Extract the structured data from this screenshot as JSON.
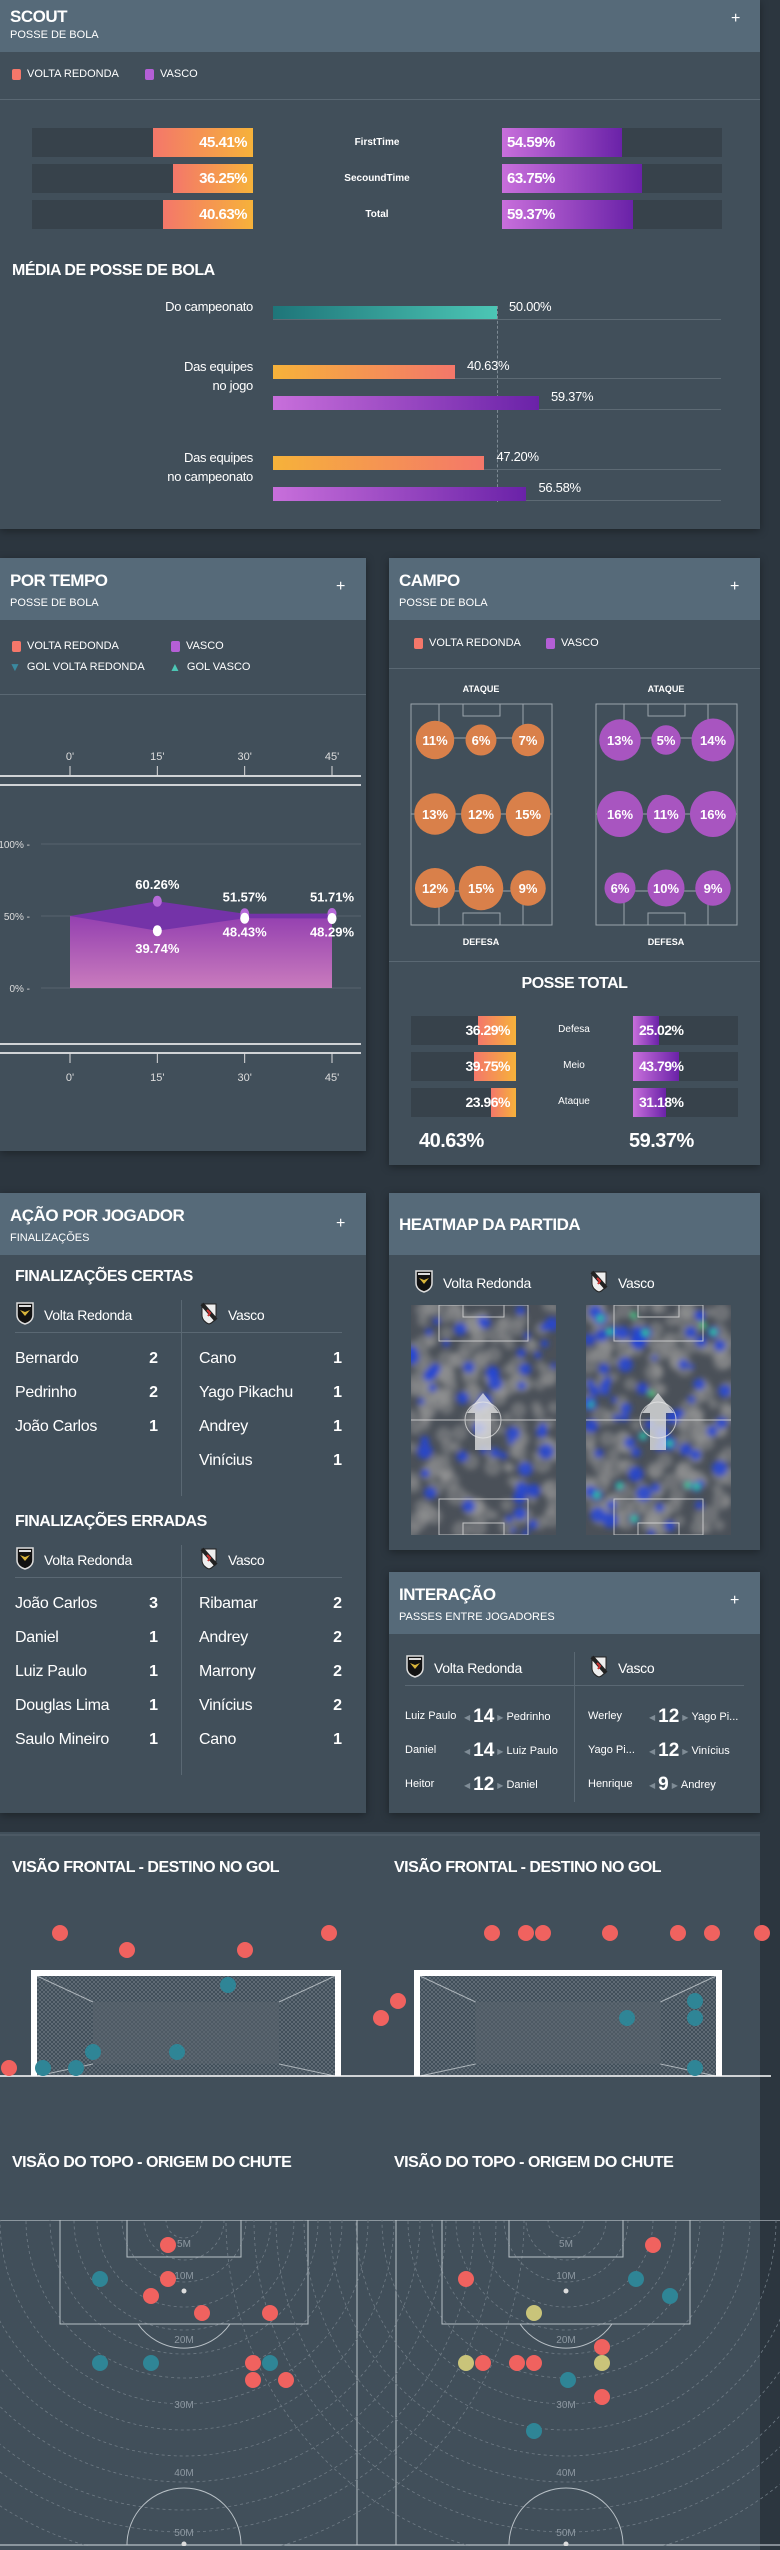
{
  "teams": {
    "home": "Volta Redonda",
    "away": "Vasco",
    "home_upper": "VOLTA REDONDA",
    "away_upper": "VASCO"
  },
  "colors": {
    "home": "#f4776a",
    "home_end": "#f6b23a",
    "away": "#c86fdb",
    "away_end": "#6a22a8",
    "league": "#1e7579",
    "league_end": "#4cc6b5",
    "goal_home": "#3a8aa0",
    "goal_away": "#4cc6b5",
    "shot_miss": "#f0625f",
    "shot_target": "#2f8596",
    "shot_other": "#c9c47a"
  },
  "scout": {
    "title": "SCOUT",
    "subtitle": "POSSE DE BOLA",
    "expand": "+",
    "bars": [
      {
        "label": "FirstTime",
        "home": 45.41,
        "away": 54.59,
        "home_text": "45.41%",
        "away_text": "54.59%"
      },
      {
        "label": "SecoundTime",
        "home": 36.25,
        "away": 63.75,
        "home_text": "36.25%",
        "away_text": "63.75%"
      },
      {
        "label": "Total",
        "home": 40.63,
        "away": 59.37,
        "home_text": "40.63%",
        "away_text": "59.37%"
      }
    ]
  },
  "media": {
    "title": "MÉDIA DE POSSE DE BOLA",
    "rows": [
      {
        "label_lines": [
          "Do campeonato"
        ],
        "bars": [
          {
            "team": "league",
            "value": 50.0,
            "text": "50.00%"
          }
        ]
      },
      {
        "label_lines": [
          "Das equipes",
          "no jogo"
        ],
        "bars": [
          {
            "team": "home",
            "value": 40.63,
            "text": "40.63%"
          },
          {
            "team": "away",
            "value": 59.37,
            "text": "59.37%"
          }
        ]
      },
      {
        "label_lines": [
          "Das equipes",
          "no campeonato"
        ],
        "bars": [
          {
            "team": "home",
            "value": 47.2,
            "text": "47.20%"
          },
          {
            "team": "away",
            "value": 56.58,
            "text": "56.58%"
          }
        ]
      }
    ]
  },
  "por_tempo": {
    "title": "POR TEMPO",
    "subtitle": "POSSE DE BOLA",
    "expand": "+",
    "legend": [
      "VOLTA REDONDA",
      "VASCO",
      "GOL VOLTA REDONDA",
      "GOL VASCO"
    ]
  },
  "chart_data": {
    "type": "area",
    "x": [
      "0'",
      "15'",
      "30'",
      "45'"
    ],
    "x_minutes": [
      0,
      15,
      30,
      45
    ],
    "y_ticks": [
      "100% -",
      "50% -",
      "0% -"
    ],
    "ylim": [
      0,
      100
    ],
    "series": [
      {
        "name": "VASCO",
        "values": [
          50,
          60.26,
          51.57,
          51.71
        ],
        "labels": [
          "",
          "60.26%",
          "51.57%",
          "51.71%"
        ]
      },
      {
        "name": "VOLTA REDONDA",
        "values": [
          50,
          39.74,
          48.43,
          48.29
        ],
        "labels": [
          "",
          "39.74%",
          "48.43%",
          "48.29%"
        ]
      }
    ]
  },
  "campo": {
    "title": "CAMPO",
    "subtitle": "POSSE DE BOLA",
    "expand": "+",
    "attack_label": "ATAQUE",
    "defense_label": "DEFESA",
    "home_zones": [
      [
        "11%",
        "6%",
        "7%"
      ],
      [
        "13%",
        "12%",
        "15%"
      ],
      [
        "12%",
        "15%",
        "9%"
      ]
    ],
    "away_zones": [
      [
        "13%",
        "5%",
        "14%"
      ],
      [
        "16%",
        "11%",
        "16%"
      ],
      [
        "6%",
        "10%",
        "9%"
      ]
    ],
    "posse_total": {
      "title": "POSSE TOTAL",
      "rows": [
        {
          "label": "Defesa",
          "home": 36.29,
          "away": 25.02,
          "home_text": "36.29%",
          "away_text": "25.02%"
        },
        {
          "label": "Meio",
          "home": 39.75,
          "away": 43.79,
          "home_text": "39.75%",
          "away_text": "43.79%"
        },
        {
          "label": "Ataque",
          "home": 23.96,
          "away": 31.18,
          "home_text": "23.96%",
          "away_text": "31.18%"
        }
      ],
      "home_total": "40.63%",
      "away_total": "59.37%"
    }
  },
  "acao": {
    "title": "AÇÃO POR JOGADOR",
    "subtitle": "FINALIZAÇÕES",
    "expand": "+",
    "certas": {
      "title": "FINALIZAÇÕES CERTAS",
      "home": [
        {
          "name": "Bernardo",
          "count": "2"
        },
        {
          "name": "Pedrinho",
          "count": "2"
        },
        {
          "name": "João Carlos",
          "count": "1"
        }
      ],
      "away": [
        {
          "name": "Cano",
          "count": "1"
        },
        {
          "name": "Yago Pikachu",
          "count": "1"
        },
        {
          "name": "Andrey",
          "count": "1"
        },
        {
          "name": "Vinícius",
          "count": "1"
        }
      ]
    },
    "erradas": {
      "title": "FINALIZAÇÕES ERRADAS",
      "home": [
        {
          "name": "João Carlos",
          "count": "3"
        },
        {
          "name": "Daniel",
          "count": "1"
        },
        {
          "name": "Luiz Paulo",
          "count": "1"
        },
        {
          "name": "Douglas Lima",
          "count": "1"
        },
        {
          "name": "Saulo Mineiro",
          "count": "1"
        }
      ],
      "away": [
        {
          "name": "Ribamar",
          "count": "2"
        },
        {
          "name": "Andrey",
          "count": "2"
        },
        {
          "name": "Marrony",
          "count": "2"
        },
        {
          "name": "Vinícius",
          "count": "2"
        },
        {
          "name": "Cano",
          "count": "1"
        }
      ]
    }
  },
  "heatmap": {
    "title": "HEATMAP DA PARTIDA"
  },
  "interacao": {
    "title": "INTERAÇÃO",
    "subtitle": "PASSES ENTRE JOGADORES",
    "expand": "+",
    "home": [
      {
        "from": "Luiz Paulo",
        "count": "14",
        "to": "Pedrinho"
      },
      {
        "from": "Daniel",
        "count": "14",
        "to": "Luiz Paulo"
      },
      {
        "from": "Heitor",
        "count": "12",
        "to": "Daniel"
      }
    ],
    "away": [
      {
        "from": "Werley",
        "count": "12",
        "to": "Yago Pi..."
      },
      {
        "from": "Yago Pi...",
        "count": "12",
        "to": "Vinícius"
      },
      {
        "from": "Henrique",
        "count": "9",
        "to": "Andrey"
      }
    ]
  },
  "shots": {
    "frontal_title": "VISÃO FRONTAL - DESTINO NO GOL",
    "top_title": "VISÃO DO TOPO - ORIGEM DO CHUTE",
    "distance_labels": [
      "5M",
      "10M",
      "20M",
      "30M",
      "40M",
      "50M"
    ]
  }
}
